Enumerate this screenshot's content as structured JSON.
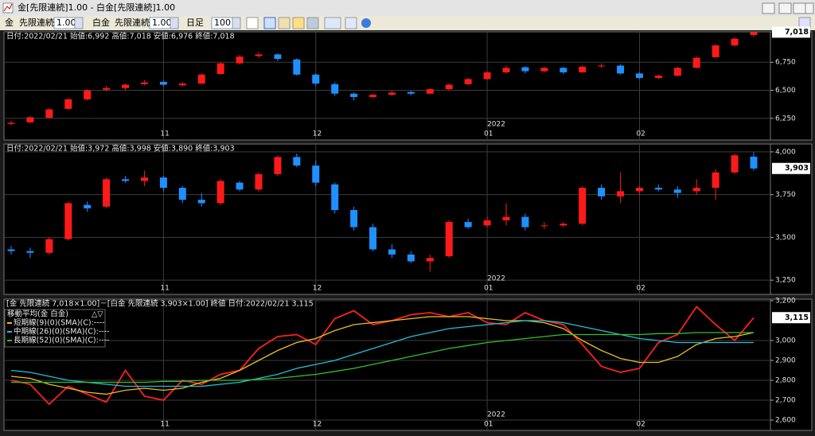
{
  "window": {
    "title": "金[先限連続]1.00 - 白金[先限連続]1.00"
  },
  "toolbar": {
    "symbol1": "金",
    "contract1": "先限連続",
    "mult1": "1.00",
    "symbol2": "白金",
    "contract2": "先限連続",
    "mult2": "1.00",
    "period": "日足",
    "count": "100"
  },
  "chart_data": [
    {
      "type": "candlestick",
      "info": "日付:2022/02/21 始値:6,992 高値:7,018 安値:6,976 終値:7,018",
      "up_color": "#ff1a1a",
      "down_color": "#1e90ff",
      "grid": true,
      "ylim": [
        6057,
        7021
      ],
      "yticks": [
        {
          "value": 6250,
          "label": "6,250"
        },
        {
          "value": 6500,
          "label": "6,500"
        },
        {
          "value": 6750,
          "label": "6,750"
        }
      ],
      "last_label": {
        "value": 7018,
        "label": "7,018"
      },
      "year_label": "2022",
      "categories": [
        null,
        null,
        null,
        null,
        null,
        null,
        null,
        null,
        "11",
        null,
        null,
        null,
        null,
        null,
        null,
        null,
        "12",
        null,
        null,
        null,
        null,
        null,
        null,
        null,
        null,
        "01",
        null,
        null,
        null,
        null,
        null,
        null,
        null,
        "02",
        null,
        null,
        null,
        null,
        null,
        null
      ],
      "candles": [
        [
          6200,
          6230,
          6190,
          6210
        ],
        [
          6215,
          6270,
          6205,
          6260
        ],
        [
          6255,
          6340,
          6250,
          6330
        ],
        [
          6335,
          6430,
          6325,
          6420
        ],
        [
          6420,
          6510,
          6410,
          6500
        ],
        [
          6505,
          6540,
          6490,
          6520
        ],
        [
          6520,
          6560,
          6500,
          6550
        ],
        [
          6555,
          6590,
          6545,
          6570
        ],
        [
          6575,
          6585,
          6535,
          6550
        ],
        [
          6545,
          6575,
          6530,
          6560
        ],
        [
          6560,
          6650,
          6555,
          6640
        ],
        [
          6645,
          6750,
          6640,
          6740
        ],
        [
          6740,
          6815,
          6730,
          6800
        ],
        [
          6805,
          6840,
          6790,
          6820
        ],
        [
          6820,
          6830,
          6760,
          6780
        ],
        [
          6775,
          6785,
          6630,
          6640
        ],
        [
          6640,
          6650,
          6540,
          6560
        ],
        [
          6555,
          6570,
          6450,
          6470
        ],
        [
          6470,
          6480,
          6410,
          6440
        ],
        [
          6440,
          6470,
          6430,
          6460
        ],
        [
          6460,
          6495,
          6450,
          6480
        ],
        [
          6485,
          6495,
          6455,
          6470
        ],
        [
          6470,
          6520,
          6465,
          6510
        ],
        [
          6510,
          6560,
          6500,
          6550
        ],
        [
          6555,
          6610,
          6545,
          6600
        ],
        [
          6600,
          6670,
          6590,
          6660
        ],
        [
          6660,
          6720,
          6650,
          6700
        ],
        [
          6705,
          6715,
          6650,
          6670
        ],
        [
          6670,
          6710,
          6660,
          6700
        ],
        [
          6700,
          6710,
          6645,
          6660
        ],
        [
          6660,
          6720,
          6655,
          6710
        ],
        [
          6715,
          6740,
          6700,
          6720
        ],
        [
          6720,
          6730,
          6640,
          6650
        ],
        [
          6650,
          6660,
          6600,
          6610
        ],
        [
          6610,
          6640,
          6600,
          6630
        ],
        [
          6630,
          6710,
          6625,
          6700
        ],
        [
          6700,
          6800,
          6695,
          6790
        ],
        [
          6795,
          6910,
          6790,
          6900
        ],
        [
          6900,
          6970,
          6890,
          6960
        ],
        [
          6992,
          7018,
          6976,
          7018
        ]
      ]
    },
    {
      "type": "candlestick",
      "info": "日付:2022/02/21 始値:3,972 高値:3,998 安値:3,890 終値:3,903",
      "up_color": "#ff1a1a",
      "down_color": "#1e90ff",
      "grid": true,
      "ylim": [
        3167,
        4046
      ],
      "yticks": [
        {
          "value": 3250,
          "label": "3,250"
        },
        {
          "value": 3500,
          "label": "3,500"
        },
        {
          "value": 3750,
          "label": "3,750"
        },
        {
          "value": 4000,
          "label": "4,000"
        }
      ],
      "last_label": {
        "value": 3903,
        "label": "3,903"
      },
      "year_label": "2022",
      "categories": [
        null,
        null,
        null,
        null,
        null,
        null,
        null,
        null,
        "11",
        null,
        null,
        null,
        null,
        null,
        null,
        null,
        "12",
        null,
        null,
        null,
        null,
        null,
        null,
        null,
        null,
        "01",
        null,
        null,
        null,
        null,
        null,
        null,
        null,
        "02",
        null,
        null,
        null,
        null,
        null,
        null
      ],
      "candles": [
        [
          3430,
          3450,
          3400,
          3420
        ],
        [
          3420,
          3440,
          3380,
          3410
        ],
        [
          3410,
          3500,
          3400,
          3490
        ],
        [
          3490,
          3710,
          3480,
          3700
        ],
        [
          3690,
          3710,
          3650,
          3670
        ],
        [
          3680,
          3850,
          3670,
          3840
        ],
        [
          3840,
          3860,
          3820,
          3830
        ],
        [
          3830,
          3890,
          3800,
          3850
        ],
        [
          3850,
          3860,
          3770,
          3790
        ],
        [
          3790,
          3800,
          3700,
          3720
        ],
        [
          3720,
          3760,
          3680,
          3700
        ],
        [
          3700,
          3840,
          3690,
          3830
        ],
        [
          3820,
          3830,
          3770,
          3780
        ],
        [
          3780,
          3880,
          3770,
          3870
        ],
        [
          3870,
          3980,
          3860,
          3970
        ],
        [
          3970,
          3990,
          3910,
          3920
        ],
        [
          3920,
          3950,
          3800,
          3820
        ],
        [
          3810,
          3820,
          3640,
          3660
        ],
        [
          3660,
          3680,
          3540,
          3560
        ],
        [
          3560,
          3580,
          3420,
          3430
        ],
        [
          3430,
          3460,
          3380,
          3400
        ],
        [
          3400,
          3420,
          3350,
          3360
        ],
        [
          3360,
          3400,
          3300,
          3380
        ],
        [
          3390,
          3600,
          3380,
          3590
        ],
        [
          3590,
          3610,
          3550,
          3560
        ],
        [
          3570,
          3620,
          3560,
          3600
        ],
        [
          3600,
          3700,
          3570,
          3620
        ],
        [
          3620,
          3640,
          3540,
          3560
        ],
        [
          3570,
          3590,
          3550,
          3570
        ],
        [
          3570,
          3590,
          3560,
          3580
        ],
        [
          3580,
          3800,
          3570,
          3790
        ],
        [
          3790,
          3810,
          3720,
          3740
        ],
        [
          3740,
          3880,
          3700,
          3770
        ],
        [
          3770,
          3800,
          3750,
          3790
        ],
        [
          3790,
          3810,
          3770,
          3780
        ],
        [
          3780,
          3800,
          3730,
          3760
        ],
        [
          3770,
          3840,
          3750,
          3790
        ],
        [
          3790,
          3900,
          3720,
          3880
        ],
        [
          3880,
          3990,
          3870,
          3980
        ],
        [
          3972,
          3998,
          3890,
          3903
        ]
      ]
    },
    {
      "type": "line",
      "info": "[金 先限連続 7,018×1.00]－[白金 先限連続 3,903×1.00] 終値 日付:2022/02/21 3,115",
      "legend_title": "移動平均(金 白金)",
      "legend_arrows": "△▽",
      "grid": true,
      "ylim": [
        2548,
        3208
      ],
      "yticks": [
        {
          "value": 2600,
          "label": "2,600"
        },
        {
          "value": 2700,
          "label": "2,700"
        },
        {
          "value": 2800,
          "label": "2,800"
        },
        {
          "value": 2900,
          "label": "2,900"
        },
        {
          "value": 3000,
          "label": "3,000"
        },
        {
          "value": 3200,
          "label": "3,200"
        }
      ],
      "last_label": {
        "value": 3115,
        "label": "3,115"
      },
      "year_label": "2022",
      "categories": [
        null,
        null,
        null,
        null,
        null,
        null,
        null,
        null,
        "11",
        null,
        null,
        null,
        null,
        null,
        null,
        null,
        "12",
        null,
        null,
        null,
        null,
        null,
        null,
        null,
        null,
        "01",
        null,
        null,
        null,
        null,
        null,
        null,
        null,
        "02",
        null,
        null,
        null,
        null,
        null,
        null
      ],
      "series": [
        {
          "color": "#ff2020",
          "values": [
            2800,
            2780,
            2680,
            2770,
            2730,
            2690,
            2850,
            2720,
            2700,
            2800,
            2780,
            2830,
            2850,
            2960,
            3020,
            3030,
            2980,
            3110,
            3150,
            3080,
            3100,
            3130,
            3140,
            3120,
            3140,
            3090,
            3080,
            3140,
            3100,
            3080,
            2980,
            2870,
            2840,
            2860,
            2990,
            3030,
            3170,
            3080,
            3000,
            3115
          ]
        },
        {
          "name": "短期線(9)(0)(SMA)(C):----",
          "color": "#e8c020",
          "values": [
            2820,
            2810,
            2780,
            2760,
            2740,
            2730,
            2750,
            2760,
            2750,
            2760,
            2790,
            2810,
            2850,
            2900,
            2950,
            2990,
            3010,
            3050,
            3080,
            3090,
            3100,
            3110,
            3120,
            3120,
            3120,
            3110,
            3100,
            3100,
            3090,
            3060,
            3000,
            2950,
            2910,
            2890,
            2890,
            2920,
            2980,
            3010,
            3020,
            3040
          ]
        },
        {
          "name": "中期線(26)(0)(SMA)(C):----",
          "color": "#20c0d8",
          "values": [
            2850,
            2840,
            2820,
            2800,
            2790,
            2780,
            2770,
            2770,
            2770,
            2770,
            2770,
            2780,
            2790,
            2810,
            2830,
            2860,
            2880,
            2900,
            2930,
            2960,
            2990,
            3020,
            3040,
            3060,
            3070,
            3080,
            3090,
            3100,
            3100,
            3090,
            3070,
            3050,
            3030,
            3010,
            3000,
            2990,
            2990,
            2990,
            2990,
            2990
          ]
        },
        {
          "name": "長期線(52)(0)(SMA)(C):----",
          "color": "#30c030",
          "values": [
            2790,
            2790,
            2790,
            2790,
            2790,
            2790,
            2790,
            2790,
            2795,
            2795,
            2800,
            2800,
            2800,
            2805,
            2810,
            2820,
            2830,
            2845,
            2860,
            2880,
            2900,
            2920,
            2940,
            2960,
            2975,
            2990,
            3000,
            3010,
            3020,
            3030,
            3030,
            3030,
            3030,
            3030,
            3035,
            3035,
            3040,
            3040,
            3040,
            3040
          ]
        }
      ]
    }
  ]
}
